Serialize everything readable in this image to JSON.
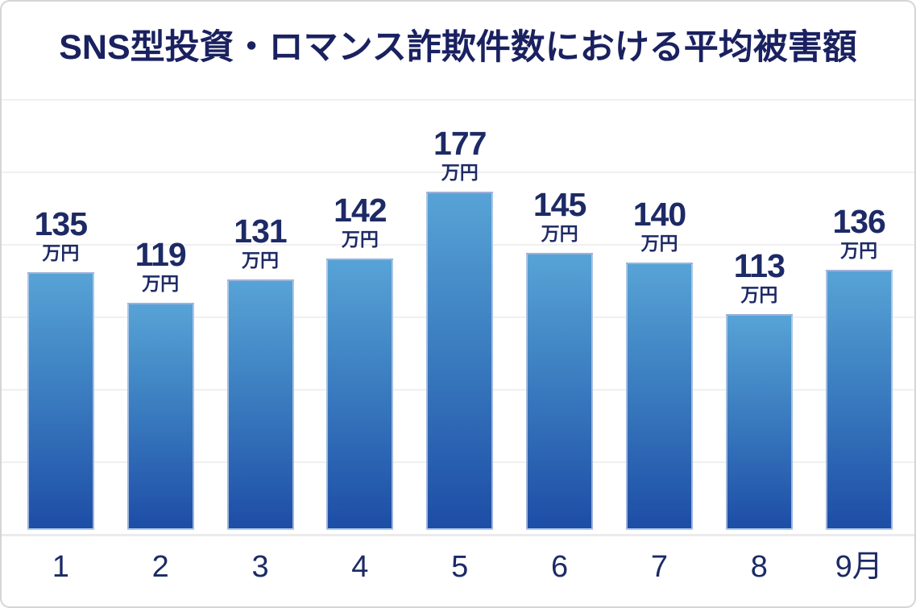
{
  "title": "SNS型投資・ロマンス詐欺件数における平均被害額",
  "chart_data": {
    "type": "bar",
    "title": "SNS型投資・ロマンス詐欺件数における平均被害額",
    "categories": [
      "1",
      "2",
      "3",
      "4",
      "5",
      "6",
      "7",
      "8",
      "9月"
    ],
    "values": [
      135,
      119,
      131,
      142,
      177,
      145,
      140,
      113,
      136
    ],
    "value_unit": "万円",
    "data_labels": [
      "135 万円",
      "119 万円",
      "131 万円",
      "142 万円",
      "177 万円",
      "145 万円",
      "140 万円",
      "113 万円",
      "136 万円"
    ],
    "xlabel": "",
    "ylabel": "",
    "ylim": [
      0,
      227
    ],
    "grid": "horizontal gridlines, unlabeled y-axis",
    "legend": "none"
  },
  "colors": {
    "title_text": "#1a2160",
    "label_text": "#1d2a66",
    "axis_label_text": "#1c2a66",
    "bar_gradient_top": "#57a3d6",
    "bar_gradient_bottom": "#1d4da6",
    "gridline": "#f0f0f0",
    "baseline": "#ebebeb",
    "frame_border": "#d5d5d5",
    "background": "#ffffff"
  }
}
